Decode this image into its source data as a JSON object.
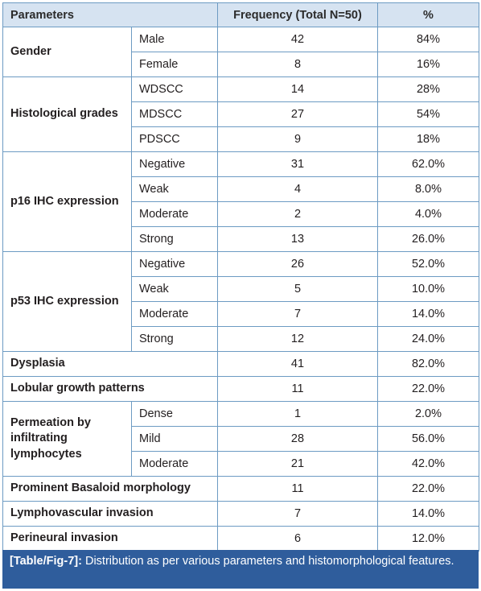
{
  "headers": [
    "Parameters",
    "",
    "Frequency (Total N=50)",
    "%"
  ],
  "groups": [
    {
      "name": "Gender",
      "rows": [
        {
          "sub": "Male",
          "freq": "42",
          "pct": "84%"
        },
        {
          "sub": "Female",
          "freq": "8",
          "pct": "16%"
        }
      ]
    },
    {
      "name": "Histological grades",
      "rows": [
        {
          "sub": "WDSCC",
          "freq": "14",
          "pct": "28%"
        },
        {
          "sub": "MDSCC",
          "freq": "27",
          "pct": "54%"
        },
        {
          "sub": "PDSCC",
          "freq": "9",
          "pct": "18%"
        }
      ]
    },
    {
      "name": "p16 IHC expression",
      "rows": [
        {
          "sub": "Negative",
          "freq": "31",
          "pct": "62.0%"
        },
        {
          "sub": "Weak",
          "freq": "4",
          "pct": "8.0%"
        },
        {
          "sub": "Moderate",
          "freq": "2",
          "pct": "4.0%"
        },
        {
          "sub": "Strong",
          "freq": "13",
          "pct": "26.0%"
        }
      ]
    },
    {
      "name": "p53 IHC expression",
      "rows": [
        {
          "sub": "Negative",
          "freq": "26",
          "pct": "52.0%"
        },
        {
          "sub": "Weak",
          "freq": "5",
          "pct": "10.0%"
        },
        {
          "sub": "Moderate",
          "freq": "7",
          "pct": "14.0%"
        },
        {
          "sub": "Strong",
          "freq": "12",
          "pct": "24.0%"
        }
      ]
    },
    {
      "name": "Dysplasia",
      "rows": [
        {
          "sub": "",
          "freq": "41",
          "pct": "82.0%"
        }
      ]
    },
    {
      "name": "Lobular growth patterns",
      "rows": [
        {
          "sub": "",
          "freq": "11",
          "pct": "22.0%"
        }
      ]
    },
    {
      "name": "Permeation by infiltrating lymphocytes",
      "rows": [
        {
          "sub": "Dense",
          "freq": "1",
          "pct": "2.0%"
        },
        {
          "sub": "Mild",
          "freq": "28",
          "pct": "56.0%"
        },
        {
          "sub": "Moderate",
          "freq": "21",
          "pct": "42.0%"
        }
      ]
    },
    {
      "name": "Prominent Basaloid morphology",
      "rows": [
        {
          "sub": "",
          "freq": "11",
          "pct": "22.0%"
        }
      ]
    },
    {
      "name": "Lymphovascular invasion",
      "rows": [
        {
          "sub": "",
          "freq": "7",
          "pct": "14.0%"
        }
      ]
    },
    {
      "name": "Perineural invasion",
      "rows": [
        {
          "sub": "",
          "freq": "6",
          "pct": "12.0%"
        }
      ]
    }
  ],
  "caption": {
    "label": "[Table/Fig-7]:",
    "text": " Distribution as per various parameters and histomorphological features."
  }
}
